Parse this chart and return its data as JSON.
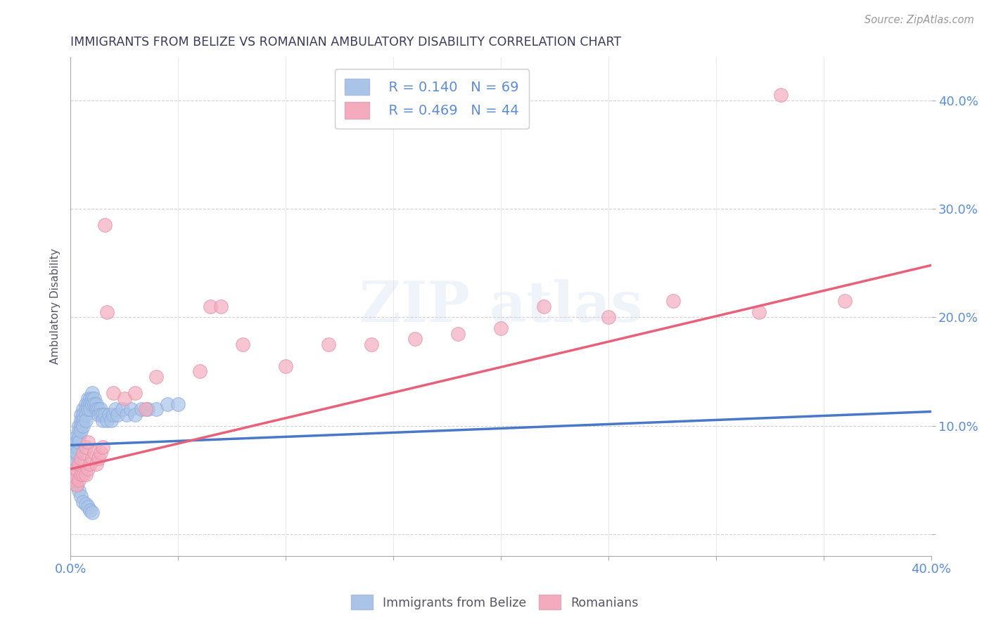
{
  "title": "IMMIGRANTS FROM BELIZE VS ROMANIAN AMBULATORY DISABILITY CORRELATION CHART",
  "source": "Source: ZipAtlas.com",
  "ylabel": "Ambulatory Disability",
  "xmin": 0.0,
  "xmax": 0.4,
  "ymin": -0.02,
  "ymax": 0.44,
  "yticks": [
    0.0,
    0.1,
    0.2,
    0.3,
    0.4
  ],
  "ytick_labels": [
    "",
    "10.0%",
    "20.0%",
    "30.0%",
    "40.0%"
  ],
  "xticks": [
    0.0,
    0.05,
    0.1,
    0.15,
    0.2,
    0.25,
    0.3,
    0.35,
    0.4
  ],
  "xtick_labels": [
    "0.0%",
    "",
    "",
    "",
    "",
    "",
    "",
    "",
    "40.0%"
  ],
  "legend_r1": "R = 0.140   N = 69",
  "legend_r2": "R = 0.469   N = 44",
  "blue_color": "#aac4e8",
  "pink_color": "#f4abbe",
  "blue_line_color": "#4a78c8",
  "pink_line_color": "#e8607a",
  "blue_dash_color": "#85bcd4",
  "text_color": "#5b8dd9",
  "title_color": "#3a3a5c",
  "blue_scatter_x": [
    0.001,
    0.001,
    0.002,
    0.002,
    0.002,
    0.003,
    0.003,
    0.003,
    0.003,
    0.004,
    0.004,
    0.004,
    0.004,
    0.005,
    0.005,
    0.005,
    0.005,
    0.006,
    0.006,
    0.006,
    0.006,
    0.007,
    0.007,
    0.007,
    0.007,
    0.008,
    0.008,
    0.008,
    0.009,
    0.009,
    0.009,
    0.01,
    0.01,
    0.01,
    0.011,
    0.011,
    0.012,
    0.012,
    0.013,
    0.013,
    0.014,
    0.014,
    0.015,
    0.015,
    0.016,
    0.017,
    0.018,
    0.019,
    0.02,
    0.021,
    0.022,
    0.024,
    0.026,
    0.028,
    0.03,
    0.033,
    0.036,
    0.04,
    0.045,
    0.05,
    0.002,
    0.003,
    0.004,
    0.005,
    0.006,
    0.007,
    0.008,
    0.009,
    0.01
  ],
  "blue_scatter_y": [
    0.075,
    0.065,
    0.085,
    0.08,
    0.07,
    0.09,
    0.085,
    0.08,
    0.075,
    0.1,
    0.095,
    0.09,
    0.085,
    0.11,
    0.105,
    0.1,
    0.095,
    0.115,
    0.11,
    0.105,
    0.1,
    0.12,
    0.115,
    0.11,
    0.105,
    0.125,
    0.12,
    0.115,
    0.125,
    0.12,
    0.115,
    0.13,
    0.125,
    0.12,
    0.125,
    0.12,
    0.12,
    0.115,
    0.115,
    0.11,
    0.115,
    0.11,
    0.11,
    0.105,
    0.11,
    0.105,
    0.11,
    0.105,
    0.11,
    0.115,
    0.11,
    0.115,
    0.11,
    0.115,
    0.11,
    0.115,
    0.115,
    0.115,
    0.12,
    0.12,
    0.05,
    0.045,
    0.04,
    0.035,
    0.03,
    0.028,
    0.025,
    0.022,
    0.02
  ],
  "pink_scatter_x": [
    0.001,
    0.002,
    0.003,
    0.003,
    0.004,
    0.004,
    0.005,
    0.005,
    0.006,
    0.006,
    0.007,
    0.007,
    0.008,
    0.008,
    0.009,
    0.01,
    0.011,
    0.012,
    0.013,
    0.014,
    0.015,
    0.016,
    0.017,
    0.02,
    0.025,
    0.03,
    0.035,
    0.04,
    0.06,
    0.065,
    0.07,
    0.08,
    0.1,
    0.12,
    0.14,
    0.16,
    0.18,
    0.2,
    0.22,
    0.25,
    0.28,
    0.32,
    0.36,
    0.33
  ],
  "pink_scatter_y": [
    0.055,
    0.05,
    0.06,
    0.045,
    0.065,
    0.05,
    0.07,
    0.055,
    0.075,
    0.055,
    0.08,
    0.055,
    0.085,
    0.06,
    0.065,
    0.07,
    0.075,
    0.065,
    0.07,
    0.075,
    0.08,
    0.285,
    0.205,
    0.13,
    0.125,
    0.13,
    0.115,
    0.145,
    0.15,
    0.21,
    0.21,
    0.175,
    0.155,
    0.175,
    0.175,
    0.18,
    0.185,
    0.19,
    0.21,
    0.2,
    0.215,
    0.205,
    0.215,
    0.405
  ],
  "blue_trendline_x": [
    0.0,
    0.4
  ],
  "blue_trendline_y": [
    0.082,
    0.113
  ],
  "pink_trendline_x": [
    0.0,
    0.4
  ],
  "pink_trendline_y": [
    0.06,
    0.248
  ]
}
